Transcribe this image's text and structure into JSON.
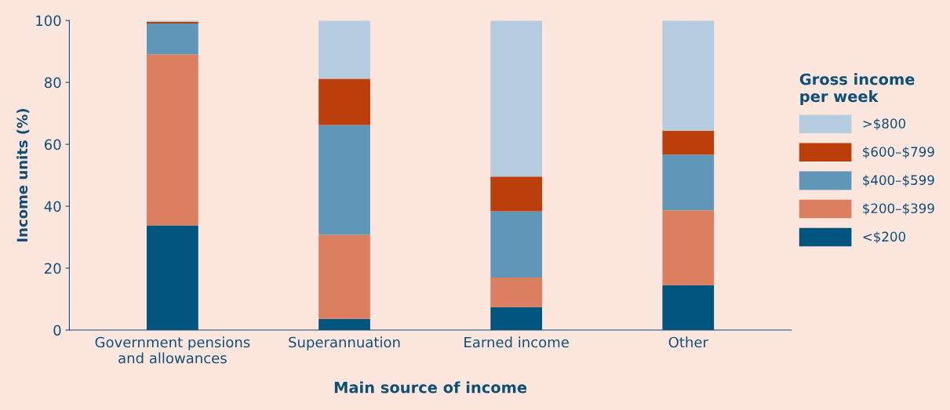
{
  "chart_data": {
    "type": "bar",
    "stacked": true,
    "xlabel": "Main source of income",
    "ylabel": "Income units (%)",
    "legend_title": "Gross income\nper week",
    "legend": "right",
    "categories": [
      "Government pensions\nand allowances",
      "Superannuation",
      "Earned income",
      "Other"
    ],
    "series": [
      {
        "name": "<$200",
        "color": "#00557f",
        "values": [
          33.8,
          3.6,
          7.4,
          14.5
        ]
      },
      {
        "name": "$200–$399",
        "color": "#db7f60",
        "values": [
          55.3,
          27.2,
          9.6,
          24.2
        ]
      },
      {
        "name": "$400–$599",
        "color": "#6096b8",
        "values": [
          9.9,
          35.4,
          21.4,
          18.0
        ]
      },
      {
        "name": "$600–$799",
        "color": "#bc3f0b",
        "values": [
          0.5,
          15.0,
          11.2,
          7.7
        ]
      },
      {
        "name": ">$800",
        "color": "#b5cbe0",
        "values": [
          0.5,
          18.8,
          50.4,
          35.6
        ]
      }
    ],
    "ylim": [
      0,
      100
    ],
    "yticks": [
      0,
      20,
      40,
      60,
      80,
      100
    ],
    "grid": false
  }
}
